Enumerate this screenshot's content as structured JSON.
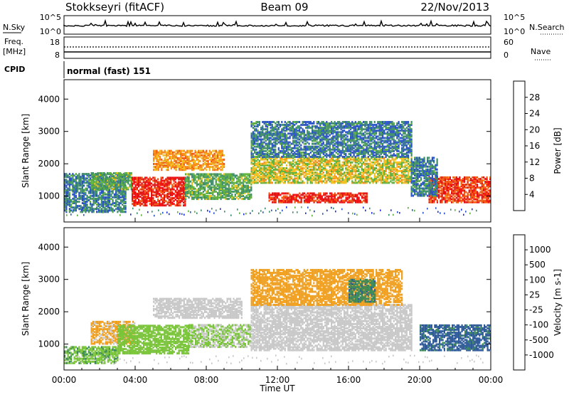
{
  "header": {
    "station": "Stokkseyri (fitACF)",
    "beam": "Beam 09",
    "date": "22/Nov/2013"
  },
  "nsky_panel": {
    "left_label": "N.Sky",
    "right_label": "N.Search",
    "left_ticks": [
      "10^5",
      "10^0"
    ],
    "right_ticks": [
      "10^5",
      "10^0"
    ]
  },
  "freq_panel": {
    "left_label_line1": "Freq.",
    "left_label_line2": "[MHz]",
    "left_ticks": [
      "18",
      "8"
    ],
    "right_label": "Nave",
    "right_ticks": [
      "60",
      "0"
    ],
    "cpid_label": "CPID",
    "cpid_text": "normal (fast) 151"
  },
  "x_axis": {
    "label": "Time UT",
    "ticks": [
      "00:00",
      "04:00",
      "08:00",
      "12:00",
      "16:00",
      "20:00",
      "00:00"
    ]
  },
  "colors": {
    "power_scale": [
      "#1e2fd8",
      "#2b55c6",
      "#3f8f6a",
      "#5fb03c",
      "#f0c020",
      "#f58a18",
      "#f05a10",
      "#e81010"
    ],
    "velocity_scale": [
      "#2340c8",
      "#2e5a9a",
      "#3c8a5a",
      "#7ac43a",
      "#c8c8c8",
      "#f0a020",
      "#f08018",
      "#f05a10",
      "#e81010"
    ]
  },
  "chart_data": [
    {
      "type": "heatmap",
      "panel": "power",
      "ylabel": "Slant Range [km]",
      "yticks": [
        "1000",
        "2000",
        "3000",
        "4000"
      ],
      "ylim": [
        200,
        4600
      ],
      "xlim": [
        0,
        24
      ],
      "colorbar_label": "Power [dB]",
      "colorbar_ticks": [
        "4",
        "8",
        "12",
        "16",
        "20",
        "24",
        "28"
      ],
      "colorbar_range": [
        0,
        30
      ],
      "regions": [
        {
          "t0": 0.0,
          "t1": 3.5,
          "r0": 500,
          "r1": 1700,
          "level": 8
        },
        {
          "t0": 1.5,
          "t1": 3.8,
          "r0": 1200,
          "r1": 1700,
          "level": 12
        },
        {
          "t0": 3.8,
          "t1": 6.8,
          "r0": 700,
          "r1": 1600,
          "level": 28
        },
        {
          "t0": 6.8,
          "t1": 10.5,
          "r0": 900,
          "r1": 1700,
          "level": 12
        },
        {
          "t0": 5.0,
          "t1": 9.0,
          "r0": 1800,
          "r1": 2400,
          "level": 20
        },
        {
          "t0": 10.5,
          "t1": 19.5,
          "r0": 1400,
          "r1": 2200,
          "level": 16
        },
        {
          "t0": 11.5,
          "t1": 17.0,
          "r0": 800,
          "r1": 1100,
          "level": 28
        },
        {
          "t0": 10.5,
          "t1": 19.5,
          "r0": 2200,
          "r1": 3300,
          "level": 8
        },
        {
          "t0": 20.5,
          "t1": 24.0,
          "r0": 800,
          "r1": 1600,
          "level": 26
        },
        {
          "t0": 19.5,
          "t1": 21.0,
          "r0": 1000,
          "r1": 2200,
          "level": 8
        }
      ]
    },
    {
      "type": "heatmap",
      "panel": "velocity",
      "ylabel": "Slant Range [km]",
      "yticks": [
        "1000",
        "2000",
        "3000",
        "4000"
      ],
      "ylim": [
        200,
        4600
      ],
      "xlim": [
        0,
        24
      ],
      "colorbar_label": "Velocity [m s-1]",
      "colorbar_ticks": [
        "1000",
        "500",
        "100",
        "25",
        "-25",
        "-100",
        "-500",
        "-1000"
      ],
      "colorbar_range": [
        -1000,
        1000
      ],
      "regions": [
        {
          "t0": 0.0,
          "t1": 3.0,
          "r0": 400,
          "r1": 900,
          "level": -300
        },
        {
          "t0": 1.5,
          "t1": 4.0,
          "r0": 1000,
          "r1": 1700,
          "level": 150
        },
        {
          "t0": 3.0,
          "t1": 7.0,
          "r0": 700,
          "r1": 1600,
          "level": -250
        },
        {
          "t0": 7.0,
          "t1": 10.5,
          "r0": 900,
          "r1": 1600,
          "level": -120
        },
        {
          "t0": 5.0,
          "t1": 10.0,
          "r0": 1800,
          "r1": 2400,
          "level": 0
        },
        {
          "t0": 10.5,
          "t1": 19.5,
          "r0": 800,
          "r1": 2200,
          "level": 0
        },
        {
          "t0": 10.5,
          "t1": 19.0,
          "r0": 2200,
          "r1": 3300,
          "level": 200
        },
        {
          "t0": 20.0,
          "t1": 24.0,
          "r0": 800,
          "r1": 1600,
          "level": -600
        },
        {
          "t0": 16.0,
          "t1": 17.5,
          "r0": 2300,
          "r1": 3000,
          "level": -500
        }
      ]
    }
  ]
}
